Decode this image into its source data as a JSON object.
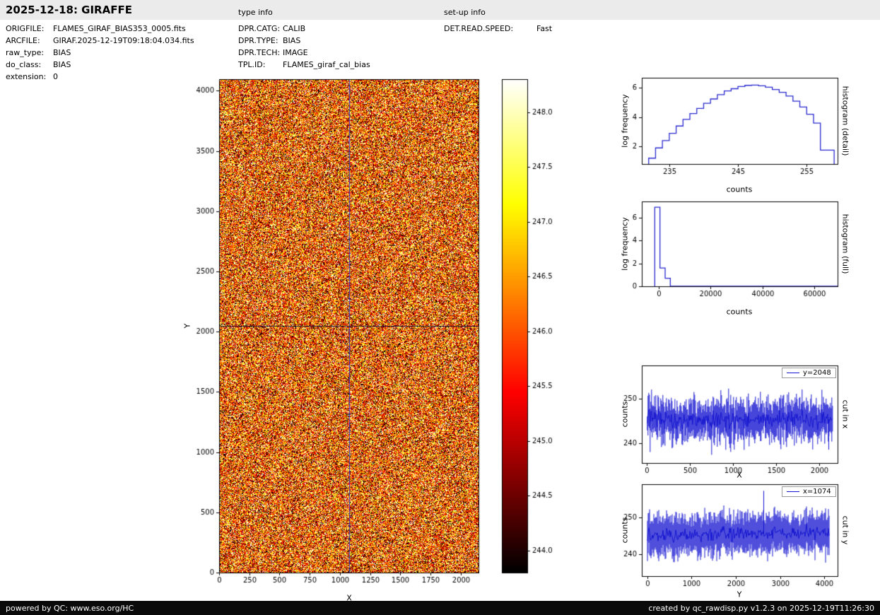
{
  "header": {
    "title": "2025-12-18: GIRAFFE",
    "type_info_label": "type info",
    "setup_info_label": "set-up info"
  },
  "metadata": {
    "left": [
      {
        "label": "ORIGFILE:",
        "value": "FLAMES_GIRAF_BIAS353_0005.fits"
      },
      {
        "label": "ARCFILE:",
        "value": "GIRAF.2025-12-19T09:18:04.034.fits"
      },
      {
        "label": "raw_type:",
        "value": "BIAS"
      },
      {
        "label": "do_class:",
        "value": "BIAS"
      },
      {
        "label": "extension:",
        "value": "0"
      }
    ],
    "middle": [
      {
        "label": "DPR.CATG:",
        "value": "CALIB"
      },
      {
        "label": "DPR.TYPE:",
        "value": "BIAS"
      },
      {
        "label": "DPR.TECH:",
        "value": "IMAGE"
      },
      {
        "label": "TPL.ID:",
        "value": "FLAMES_giraf_cal_bias"
      }
    ],
    "right": [
      {
        "label": "DET.READ.SPEED:",
        "value": "Fast"
      }
    ]
  },
  "footer": {
    "left": "powered by QC: www.eso.org/HC",
    "right": "created by qc_rawdisp.py v1.2.3 on 2025-12-19T11:26:30"
  },
  "colors": {
    "plot_line": "#1515d0",
    "hist_line": "#2a2ad0",
    "footer_bg": "#0a0a0a",
    "header_bg": "#ebebeb"
  },
  "chart_data": [
    {
      "id": "bias",
      "type": "heatmap",
      "xlabel": "X",
      "ylabel": "Y",
      "xlim": [
        0,
        2148
      ],
      "ylim": [
        0,
        4096
      ],
      "xticks": [
        0,
        250,
        500,
        750,
        1000,
        1250,
        1500,
        1750,
        2000
      ],
      "yticks": [
        0,
        500,
        1000,
        1500,
        2000,
        2500,
        3000,
        3500,
        4000
      ],
      "colormap": "hot",
      "value_range": [
        243.8,
        248.3
      ],
      "mean": 246.05,
      "sd": 1.5,
      "crosshair": {
        "x": 1074,
        "y": 2048
      },
      "crosshair_color_v": "#3a3acc",
      "crosshair_color_h": "#15153a"
    },
    {
      "id": "cbar",
      "type": "colorbar",
      "colormap": "hot",
      "range": [
        243.8,
        248.3
      ],
      "ticks": [
        248.0,
        247.5,
        247.0,
        246.5,
        246.0,
        245.5,
        245.0,
        244.5,
        244.0
      ]
    },
    {
      "id": "hist_detail",
      "type": "step",
      "xlabel": "counts",
      "ylabel": "log frequency",
      "right_label": "histogram (detail)",
      "xlim": [
        231,
        259.5
      ],
      "ylim": [
        0.8,
        6.7
      ],
      "xticks": [
        235,
        245,
        255
      ],
      "yticks": [
        2,
        4,
        6
      ],
      "bin_edges": [
        232,
        233,
        234,
        235,
        236,
        237,
        238,
        239,
        240,
        241,
        242,
        243,
        244,
        245,
        246,
        247,
        248,
        249,
        250,
        251,
        252,
        253,
        254,
        255,
        256,
        257,
        258,
        259
      ],
      "values": [
        1.2,
        1.9,
        2.4,
        2.9,
        3.4,
        3.85,
        4.25,
        4.6,
        4.95,
        5.25,
        5.55,
        5.8,
        5.95,
        6.1,
        6.18,
        6.2,
        6.15,
        6.05,
        5.9,
        5.7,
        5.45,
        5.1,
        4.7,
        4.2,
        3.6,
        1.75,
        1.75
      ],
      "extend_right": false,
      "color": "#2a2ad0"
    },
    {
      "id": "hist_full",
      "type": "step",
      "xlabel": "counts",
      "ylabel": "log frequency",
      "right_label": "histogram (full)",
      "xlim": [
        -6500,
        69000
      ],
      "ylim": [
        0,
        7.4
      ],
      "xticks": [
        0,
        20000,
        40000,
        60000
      ],
      "yticks": [
        0,
        2,
        4,
        6
      ],
      "bin_edges": [
        -1500,
        500,
        2500,
        4500
      ],
      "values": [
        6.9,
        1.6,
        0.7
      ],
      "extend_right": true,
      "color": "#2a2ad0"
    },
    {
      "id": "cut_x",
      "type": "noise_line",
      "xlabel": "X",
      "ylabel": "counts",
      "right_label": "cut in x",
      "legend": "y=2048",
      "xlim": [
        -60,
        2210
      ],
      "ylim": [
        235.5,
        257.5
      ],
      "xticks": [
        0,
        500,
        1000,
        1500,
        2000
      ],
      "yticks": [
        240,
        250
      ],
      "n": 2148,
      "data_range": [
        0,
        2148
      ],
      "mean_start": 245.3,
      "mean_end": 245.4,
      "sd": 2.6,
      "spikes": [
        {
          "x": 2100,
          "value": 238.5
        }
      ],
      "color": "#1515d0"
    },
    {
      "id": "cut_y",
      "type": "noise_line",
      "xlabel": "Y",
      "ylabel": "counts",
      "right_label": "cut in y",
      "legend": "x=1074",
      "xlim": [
        -120,
        4300
      ],
      "ylim": [
        234,
        259
      ],
      "xticks": [
        0,
        1000,
        2000,
        3000,
        4000
      ],
      "yticks": [
        240,
        250
      ],
      "n": 4096,
      "data_range": [
        0,
        4096
      ],
      "mean_start": 244.9,
      "mean_end": 245.9,
      "sd": 2.6,
      "spikes": [
        {
          "x": 2620,
          "value": 257.2
        }
      ],
      "color": "#1515d0"
    }
  ]
}
